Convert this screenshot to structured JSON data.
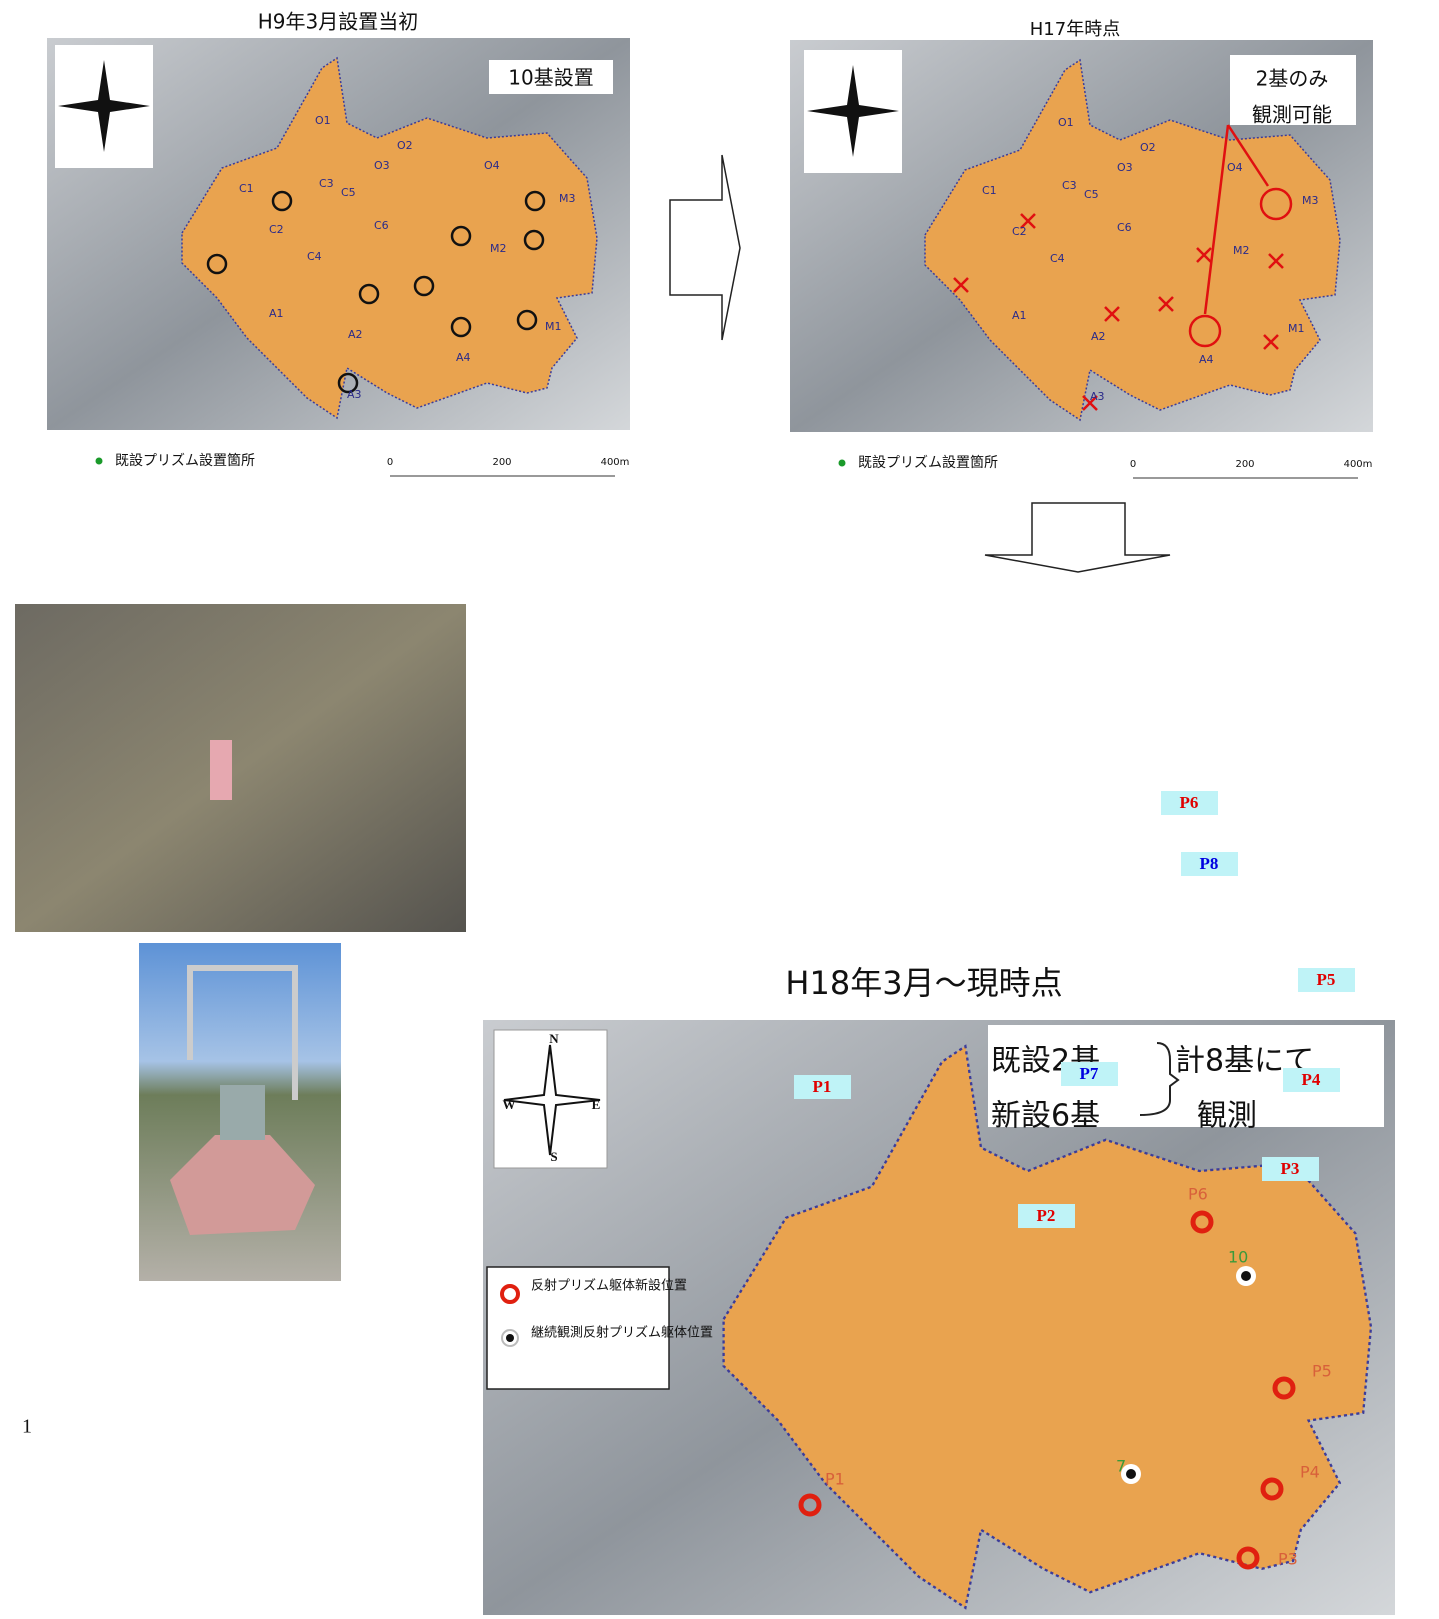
{
  "map_h9": {
    "title": "H9年3月設置当初",
    "note": "10基設置",
    "legend": "既設プリズム設置箇所",
    "scale": [
      "0",
      "200",
      "400m"
    ],
    "blocks": [
      "O1",
      "O2",
      "O3",
      "O4",
      "C1",
      "C2",
      "C3",
      "C4",
      "C5",
      "C6",
      "M1",
      "M2",
      "M3",
      "A1",
      "A2",
      "A3",
      "A4"
    ]
  },
  "map_h17": {
    "title": "H17年時点",
    "note": [
      "2基のみ",
      "観測可能"
    ],
    "legend": "既設プリズム設置箇所",
    "scale": [
      "0",
      "200",
      "400m"
    ],
    "blocks": [
      "O1",
      "O2",
      "O3",
      "O4",
      "C1",
      "C2",
      "C3",
      "C4",
      "C5",
      "C6",
      "M1",
      "M2",
      "M3",
      "A1",
      "A2",
      "A3",
      "A4"
    ]
  },
  "map_h18": {
    "title": "H18年3月～現時点",
    "summary": {
      "existing": "既設2基",
      "new": "新設6基",
      "total": "計8基にて",
      "observe": "観測"
    },
    "legend": {
      "new": "反射プリズム躯体新設位置",
      "continued": "継続観測反射プリズム躯体位置"
    },
    "compass": [
      "N",
      "W",
      "E",
      "S"
    ],
    "points": [
      "P6",
      "P5",
      "P4",
      "P3",
      "P1",
      "10",
      "7"
    ]
  },
  "floating_labels": [
    {
      "text": "P6",
      "color": "#e00000"
    },
    {
      "text": "P8",
      "color": "#0000e0"
    },
    {
      "text": "P5",
      "color": "#e00000"
    },
    {
      "text": "P7",
      "color": "#0000e0"
    },
    {
      "text": "P4",
      "color": "#e00000"
    },
    {
      "text": "P1",
      "color": "#e00000"
    },
    {
      "text": "P3",
      "color": "#e00000"
    },
    {
      "text": "P2",
      "color": "#e00000"
    }
  ],
  "page_number": "1"
}
